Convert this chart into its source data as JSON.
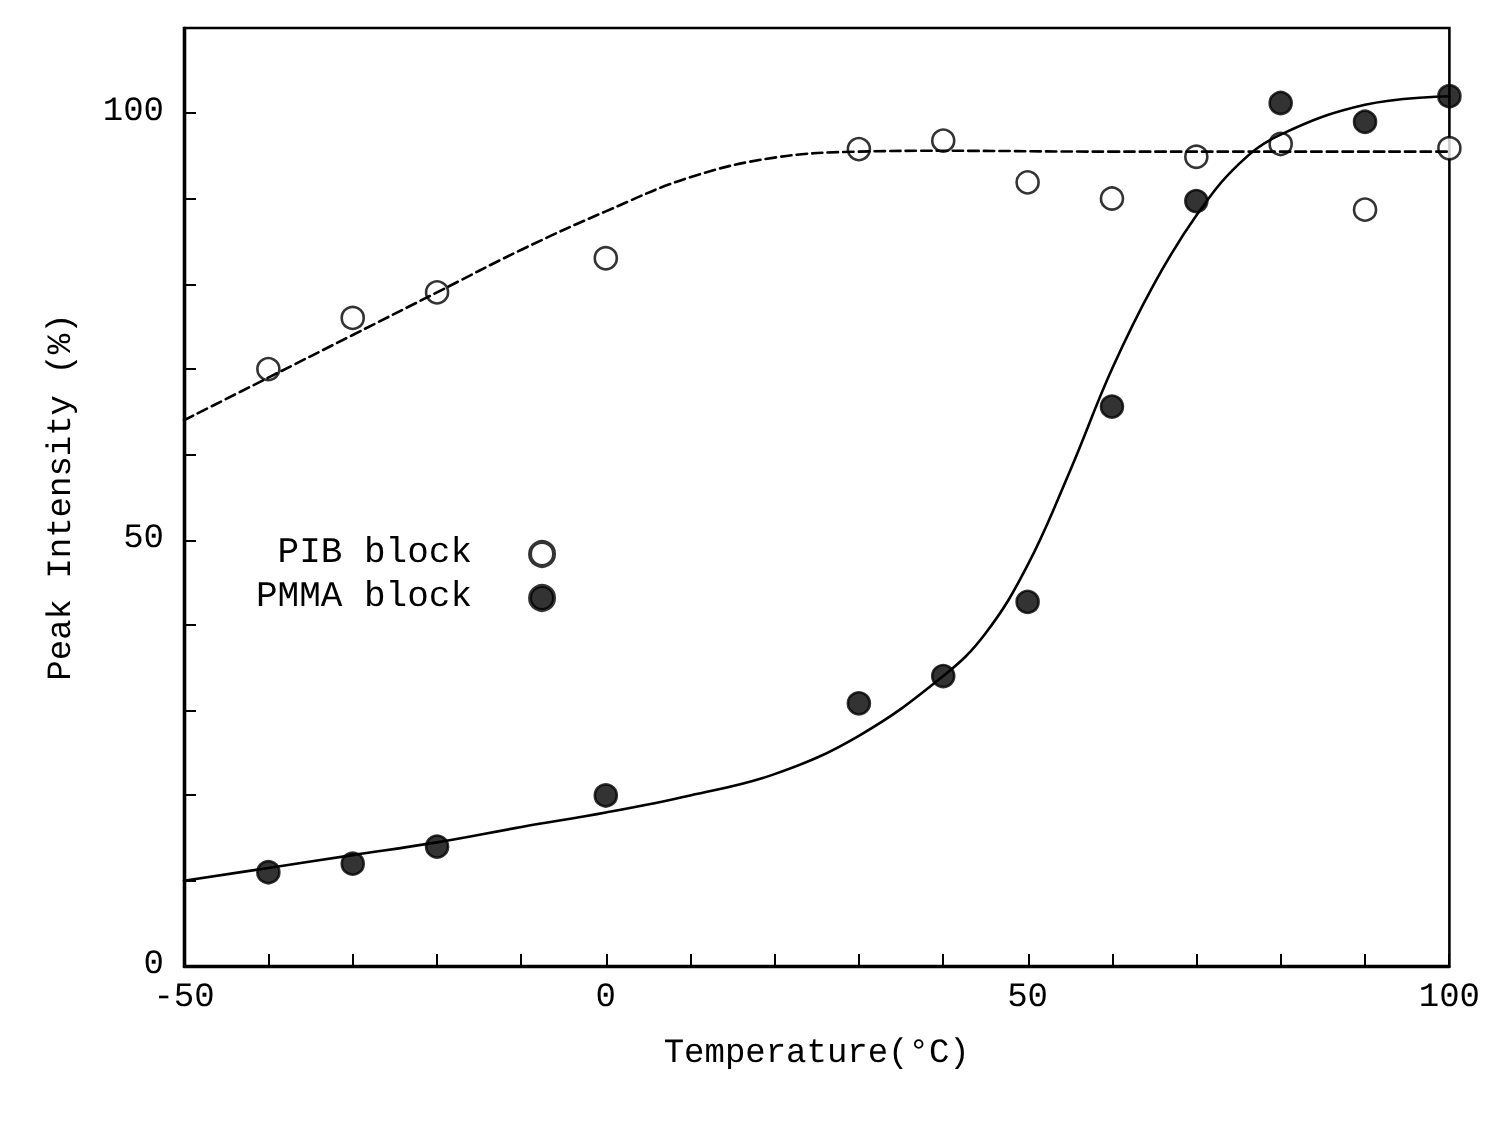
{
  "chart_data": {
    "type": "scatter",
    "xlabel": "Temperature(°C)",
    "ylabel": "Peak Intensity (%)",
    "xlim": [
      -50,
      100
    ],
    "xticks": [
      -50,
      {
        "value": -40,
        "label": null
      },
      {
        "value": -30,
        "label": null
      },
      {
        "value": -20,
        "label": null
      },
      {
        "value": -10,
        "label": null
      },
      0,
      {
        "value": 10,
        "label": null
      },
      {
        "value": 20,
        "label": null
      },
      {
        "value": 30,
        "label": null
      },
      {
        "value": 40,
        "label": null
      },
      50,
      {
        "value": 60,
        "label": null
      },
      {
        "value": 70,
        "label": null
      },
      {
        "value": 80,
        "label": null
      },
      {
        "value": 90,
        "label": null
      },
      100
    ],
    "ylim": [
      0,
      110
    ],
    "yticks": [
      0,
      {
        "value": 10,
        "label": null
      },
      {
        "value": 20,
        "label": null
      },
      {
        "value": 30,
        "label": null
      },
      {
        "value": 40,
        "label": null
      },
      50,
      {
        "value": 60,
        "label": null
      },
      {
        "value": 70,
        "label": null
      },
      {
        "value": 80,
        "label": null
      },
      {
        "value": 90,
        "label": null
      },
      100
    ],
    "grid": false,
    "legend": "left",
    "marker": "circle",
    "series": [
      {
        "name": "PIB block",
        "color": "#ffffff",
        "x": [
          -40,
          -30,
          -20,
          0,
          30,
          40,
          50,
          60,
          70,
          80,
          90,
          100
        ],
        "values": [
          70,
          76,
          79,
          83,
          95.8,
          96.8,
          91.9,
          90,
          94.9,
          96.4,
          88.7,
          95.9
        ]
      },
      {
        "name": "PMMA block",
        "color": "#000000",
        "x": [
          -40,
          -30,
          -20,
          0,
          30,
          40,
          50,
          60,
          70,
          80,
          90,
          100
        ],
        "values": [
          11,
          12,
          14,
          20,
          30.8,
          34,
          42.7,
          65.6,
          89.7,
          101.2,
          99,
          102
        ]
      },
      {
        "type": "line",
        "color": "#000000",
        "line_style": "dashed",
        "marker": "none",
        "x": [
          -50,
          -40,
          -30,
          -20,
          -10,
          0,
          10,
          20,
          30,
          40,
          60,
          80,
          100
        ],
        "values": [
          64,
          69,
          74,
          79,
          84,
          88.5,
          92.5,
          94.8,
          95.5,
          95.6,
          95.5,
          95.5,
          95.5
        ]
      },
      {
        "type": "line",
        "color": "#000000",
        "line_style": "solid",
        "marker": "none",
        "x": [
          -50,
          -40,
          -30,
          -20,
          -10,
          0,
          10,
          20,
          30,
          40,
          45,
          50,
          55,
          60,
          65,
          70,
          75,
          80,
          90,
          100
        ],
        "values": [
          10,
          11.5,
          13,
          14.5,
          16.3,
          18,
          20,
          22.5,
          27,
          34,
          39,
          47,
          58,
          70,
          80,
          88,
          94,
          97.5,
          101,
          102
        ]
      }
    ]
  }
}
